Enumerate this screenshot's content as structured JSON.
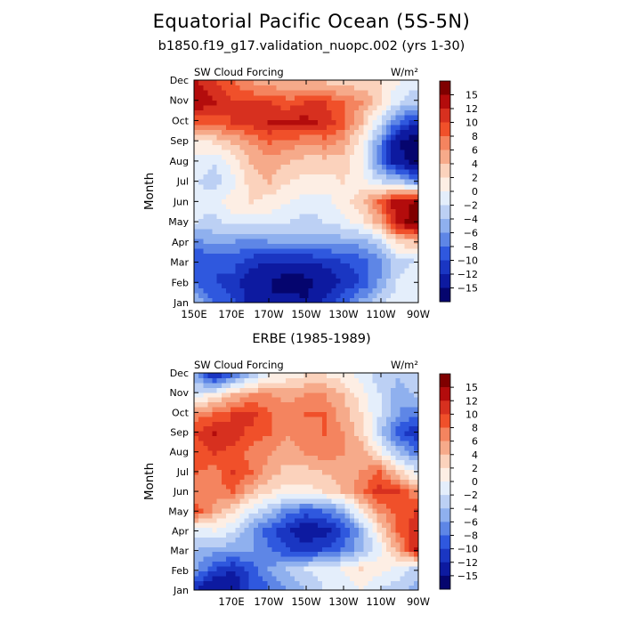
{
  "titles": {
    "main": "Equatorial Pacific Ocean (5S-5N)",
    "sub": "b1850.f19_g17.validation_nuopc.002 (yrs 1-30)"
  },
  "colorbar": {
    "labels": [
      "15",
      "12",
      "10",
      "8",
      "6",
      "4",
      "2",
      "0",
      "-2",
      "-4",
      "-6",
      "-8",
      "-10",
      "-12",
      "-15"
    ],
    "colors": [
      "#7f0000",
      "#b30c0c",
      "#d7301f",
      "#f0502a",
      "#f4845f",
      "#f6aa8a",
      "#fbd2bc",
      "#fdeee4",
      "#e4eefb",
      "#bcd0f4",
      "#8fb0ee",
      "#5e86e6",
      "#2f58de",
      "#1a36c2",
      "#0d1aa0",
      "#05056e"
    ]
  },
  "chart_data": [
    {
      "type": "heatmap",
      "title": "",
      "left_label": "SW Cloud Forcing",
      "units": "W/m²",
      "ylabel": "Month",
      "xlabel": "",
      "x_ticks": [
        "150E",
        "170E",
        "170W",
        "150W",
        "130W",
        "110W",
        "90W"
      ],
      "y_ticks": [
        "Jan",
        "Feb",
        "Mar",
        "Apr",
        "May",
        "Jun",
        "Jul",
        "Aug",
        "Sep",
        "Oct",
        "Nov",
        "Dec"
      ],
      "xlim": [
        "150E",
        "90W"
      ],
      "color_levels": [
        -15,
        -12,
        -10,
        -8,
        -6,
        -4,
        -2,
        0,
        2,
        4,
        6,
        8,
        10,
        12,
        15
      ],
      "values": [
        [
          -5,
          -9,
          -10,
          -13,
          -15,
          -14,
          -15,
          -12,
          -9,
          -6,
          -3,
          -1,
          -2
        ],
        [
          -9,
          -10,
          -11,
          -14,
          -15,
          -17,
          -16,
          -14,
          -12,
          -10,
          -6,
          -2,
          -1
        ],
        [
          -10,
          -10,
          -9,
          -11,
          -12,
          -12,
          -12,
          -11,
          -10,
          -9,
          -7,
          -3,
          -2
        ],
        [
          -7,
          -5,
          -6,
          -7,
          -6,
          -5,
          -5,
          -6,
          -5,
          -5,
          -3,
          3,
          4
        ],
        [
          -2,
          -3,
          -1,
          -1,
          -1,
          -2,
          -3,
          -2,
          -1,
          1,
          5,
          13,
          17
        ],
        [
          -1,
          -1,
          1,
          2,
          1,
          0,
          -1,
          -1,
          1,
          3,
          8,
          14,
          15
        ],
        [
          -2,
          -3,
          -1,
          3,
          4,
          2,
          1,
          1,
          2,
          1,
          -2,
          -3,
          -7
        ],
        [
          -1,
          -2,
          1,
          4,
          5,
          4,
          3,
          3,
          3,
          0,
          -7,
          -14,
          -16
        ],
        [
          1,
          2,
          4,
          6,
          8,
          7,
          6,
          7,
          5,
          1,
          -6,
          -15,
          -17
        ],
        [
          8,
          9,
          10,
          11,
          12,
          12,
          13,
          11,
          9,
          4,
          -2,
          -8,
          -12
        ],
        [
          14,
          12,
          10,
          10,
          10,
          9,
          10,
          10,
          8,
          6,
          3,
          -2,
          -4
        ],
        [
          12,
          10,
          8,
          6,
          5,
          4,
          4,
          4,
          3,
          3,
          2,
          0,
          -1
        ]
      ]
    },
    {
      "type": "heatmap",
      "title": "ERBE (1985-1989)",
      "left_label": "SW Cloud Forcing",
      "units": "W/m²",
      "ylabel": "Month",
      "xlabel": "",
      "x_ticks": [
        "170E",
        "170W",
        "150W",
        "130W",
        "110W",
        "90W"
      ],
      "y_ticks": [
        "Jan",
        "Feb",
        "Mar",
        "Apr",
        "May",
        "Jun",
        "Jul",
        "Aug",
        "Sep",
        "Oct",
        "Nov",
        "Dec"
      ],
      "xlim": [
        "150E",
        "90W"
      ],
      "color_levels": [
        -15,
        -12,
        -10,
        -8,
        -6,
        -4,
        -2,
        0,
        2,
        4,
        6,
        8,
        10,
        12,
        15
      ],
      "values": [
        [
          -12,
          -15,
          -14,
          -10,
          -8,
          -6,
          -4,
          -2,
          -1,
          0,
          -2,
          -3,
          -5
        ],
        [
          -6,
          -10,
          -12,
          -9,
          -6,
          -4,
          -2,
          -1,
          0,
          2,
          1,
          -1,
          -3
        ],
        [
          -4,
          -5,
          -5,
          -6,
          -8,
          -10,
          -11,
          -10,
          -8,
          -5,
          -1,
          5,
          12
        ],
        [
          -1,
          0,
          -2,
          -6,
          -9,
          -12,
          -14,
          -13,
          -10,
          -5,
          2,
          8,
          11
        ],
        [
          9,
          5,
          2,
          -1,
          -4,
          -7,
          -9,
          -8,
          -5,
          1,
          6,
          9,
          10
        ],
        [
          6,
          7,
          8,
          4,
          2,
          1,
          1,
          2,
          4,
          7,
          11,
          10,
          6
        ],
        [
          8,
          7,
          10,
          8,
          5,
          3,
          3,
          4,
          5,
          6,
          8,
          3,
          -1
        ],
        [
          9,
          10,
          9,
          7,
          6,
          5,
          6,
          7,
          6,
          5,
          1,
          -4,
          -7
        ],
        [
          10,
          12,
          11,
          9,
          8,
          6,
          7,
          8,
          6,
          3,
          -3,
          -9,
          -12
        ],
        [
          7,
          8,
          10,
          11,
          8,
          7,
          8,
          8,
          5,
          2,
          -2,
          -6,
          -8
        ],
        [
          -1,
          1,
          4,
          6,
          6,
          5,
          6,
          6,
          4,
          1,
          -2,
          -5,
          -4
        ],
        [
          -6,
          -12,
          -8,
          -3,
          0,
          1,
          2,
          2,
          1,
          -1,
          -3,
          -4,
          -3
        ]
      ]
    }
  ]
}
